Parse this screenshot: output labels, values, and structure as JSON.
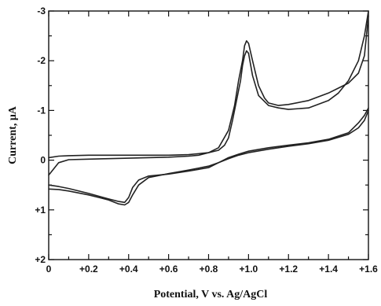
{
  "chart_data": {
    "type": "line",
    "title": "",
    "xlabel": "Potential, V vs. Ag/AgCl",
    "ylabel": "Current, μA",
    "xlim": [
      0,
      1.6
    ],
    "ylim": [
      2,
      -3
    ],
    "y_axis_inverted": true,
    "grid": false,
    "x_ticks": [
      "0",
      "+0.2",
      "+0.4",
      "+0.6",
      "+0.8",
      "+1.0",
      "+1.2",
      "+1.4",
      "+1.6"
    ],
    "x_tick_values": [
      0,
      0.2,
      0.4,
      0.6,
      0.8,
      1.0,
      1.2,
      1.4,
      1.6
    ],
    "y_ticks": [
      "-3",
      "-2",
      "-1",
      "0",
      "+1",
      "+2"
    ],
    "y_tick_values": [
      -3,
      -2,
      -1,
      0,
      1,
      2
    ],
    "series": [
      {
        "x": [
          0.0,
          0.05,
          0.1,
          0.2,
          0.3,
          0.4,
          0.5,
          0.6,
          0.7,
          0.8,
          0.85,
          0.9,
          0.93,
          0.95,
          0.97,
          0.98,
          0.99,
          1.0,
          1.02,
          1.05,
          1.08,
          1.1,
          1.15,
          1.2,
          1.3,
          1.4,
          1.45,
          1.5,
          1.55,
          1.58,
          1.6
        ],
        "y": [
          -0.05,
          -0.08,
          -0.09,
          -0.1,
          -0.1,
          -0.1,
          -0.1,
          -0.1,
          -0.11,
          -0.15,
          -0.25,
          -0.6,
          -1.1,
          -1.6,
          -2.0,
          -2.3,
          -2.4,
          -2.35,
          -2.0,
          -1.5,
          -1.25,
          -1.15,
          -1.1,
          -1.12,
          -1.2,
          -1.35,
          -1.45,
          -1.55,
          -1.75,
          -2.1,
          -2.9
        ]
      },
      {
        "x": [
          1.6,
          1.58,
          1.55,
          1.5,
          1.45,
          1.4,
          1.3,
          1.2,
          1.15,
          1.1,
          1.05,
          1.02,
          1.0,
          0.99,
          0.98,
          0.97,
          0.96,
          0.94,
          0.92,
          0.9,
          0.88,
          0.85,
          0.8,
          0.75,
          0.7,
          0.6,
          0.5,
          0.4,
          0.3,
          0.2,
          0.1,
          0.05,
          0.0
        ],
        "y": [
          -3.0,
          -2.5,
          -2.0,
          -1.6,
          -1.35,
          -1.2,
          -1.05,
          -1.02,
          -1.05,
          -1.1,
          -1.3,
          -1.7,
          -2.15,
          -2.2,
          -2.1,
          -1.9,
          -1.6,
          -1.2,
          -0.8,
          -0.45,
          -0.3,
          -0.2,
          -0.15,
          -0.1,
          -0.08,
          -0.06,
          -0.05,
          -0.04,
          -0.03,
          -0.02,
          -0.01,
          0.05,
          0.3
        ]
      },
      {
        "x": [
          1.6,
          1.58,
          1.55,
          1.5,
          1.4,
          1.3,
          1.2,
          1.1,
          1.0,
          0.95,
          0.9,
          0.85,
          0.8,
          0.7,
          0.6,
          0.5,
          0.45,
          0.42,
          0.4,
          0.38,
          0.35,
          0.3,
          0.2,
          0.1,
          0.05,
          0.0
        ],
        "y": [
          -1.05,
          -0.9,
          -0.75,
          -0.55,
          -0.42,
          -0.35,
          -0.3,
          -0.25,
          -0.18,
          -0.12,
          -0.05,
          0.05,
          0.15,
          0.22,
          0.28,
          0.32,
          0.4,
          0.55,
          0.75,
          0.85,
          0.83,
          0.78,
          0.67,
          0.57,
          0.53,
          0.5
        ]
      },
      {
        "x": [
          0.0,
          0.05,
          0.1,
          0.2,
          0.3,
          0.35,
          0.38,
          0.4,
          0.42,
          0.45,
          0.5,
          0.6,
          0.7,
          0.8,
          0.85,
          0.9,
          0.95,
          1.0,
          1.1,
          1.2,
          1.3,
          1.4,
          1.5,
          1.55,
          1.58,
          1.6
        ],
        "y": [
          0.58,
          0.59,
          0.62,
          0.7,
          0.8,
          0.88,
          0.9,
          0.85,
          0.7,
          0.5,
          0.35,
          0.27,
          0.2,
          0.12,
          0.05,
          -0.03,
          -0.1,
          -0.15,
          -0.22,
          -0.28,
          -0.33,
          -0.4,
          -0.52,
          -0.65,
          -0.8,
          -1.0
        ]
      }
    ]
  }
}
